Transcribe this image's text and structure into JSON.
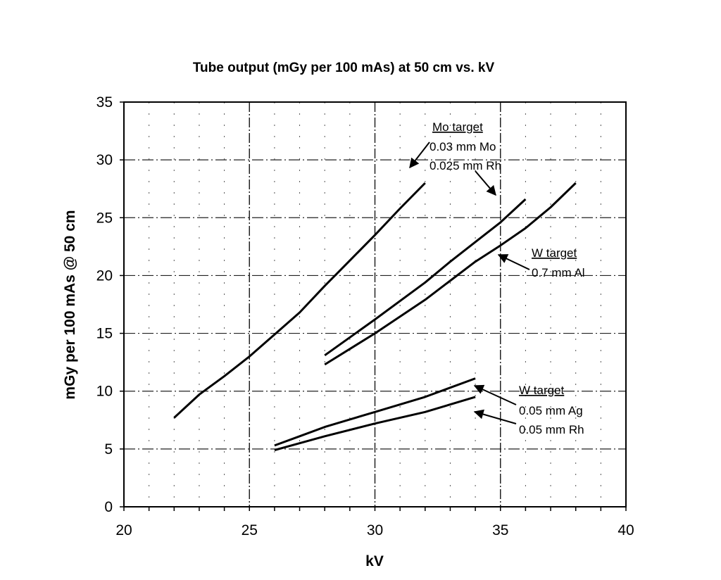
{
  "chart_data": {
    "type": "line",
    "title": "Tube output (mGy per 100 mAs) at 50 cm vs. kV",
    "xlabel": "kV",
    "ylabel": "mGy per 100 mAs @ 50 cm",
    "xlim": [
      20,
      40
    ],
    "ylim": [
      0,
      35
    ],
    "xticks": [
      "20",
      "25",
      "30",
      "35",
      "40"
    ],
    "yticks": [
      "0",
      "5",
      "10",
      "15",
      "20",
      "25",
      "30",
      "35"
    ],
    "grid": true,
    "line_color": "#000000",
    "series": [
      {
        "key": "mo-mo",
        "x": [
          22,
          23,
          24,
          25,
          26,
          27,
          28,
          29,
          30,
          31,
          32
        ],
        "y": [
          7.7,
          9.7,
          11.3,
          13.0,
          14.9,
          16.8,
          19.1,
          21.3,
          23.5,
          25.8,
          28.0
        ]
      },
      {
        "key": "mo-rh",
        "x": [
          28,
          30,
          32,
          33,
          34,
          35,
          36
        ],
        "y": [
          13.1,
          16.2,
          19.4,
          21.2,
          22.9,
          24.6,
          26.6
        ]
      },
      {
        "key": "w-al",
        "x": [
          28,
          30,
          32,
          34,
          35,
          36,
          37,
          38
        ],
        "y": [
          12.3,
          15.0,
          17.9,
          21.2,
          22.6,
          24.1,
          25.9,
          28.0
        ]
      },
      {
        "key": "w-ag",
        "x": [
          26,
          27,
          28,
          30,
          32,
          34
        ],
        "y": [
          5.3,
          6.1,
          6.9,
          8.2,
          9.5,
          11.1
        ]
      },
      {
        "key": "w-rh",
        "x": [
          26,
          28,
          30,
          32,
          34
        ],
        "y": [
          4.9,
          6.1,
          7.2,
          8.2,
          9.5
        ]
      }
    ],
    "annotations": {
      "mo_target": {
        "heading": "Mo target",
        "line1": "0.03 mm Mo",
        "line2": "0.025 mm Rh"
      },
      "w_al": {
        "heading": "W target",
        "line1": "0.7 mm Al"
      },
      "w_ag_rh": {
        "heading": "W target",
        "line1": "0.05 mm Ag",
        "line2": "0.05 mm Rh"
      }
    }
  }
}
